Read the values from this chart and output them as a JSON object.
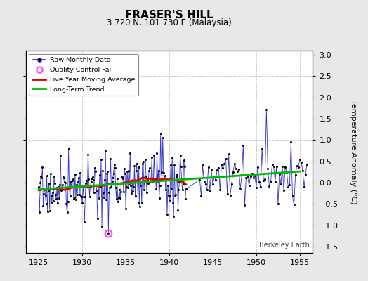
{
  "title": "FRASER'S HILL",
  "subtitle": "3.720 N, 101.730 E (Malaysia)",
  "ylabel": "Temperature Anomaly (°C)",
  "credit": "Berkeley Earth",
  "xlim": [
    1923.5,
    1956.5
  ],
  "ylim": [
    -1.65,
    3.1
  ],
  "xticks": [
    1925,
    1930,
    1935,
    1940,
    1945,
    1950,
    1955
  ],
  "yticks": [
    -1.5,
    -1.0,
    -0.5,
    0.0,
    0.5,
    1.0,
    1.5,
    2.0,
    2.5,
    3.0
  ],
  "bg_color": "#e8e8e8",
  "plot_bg_color": "#ffffff",
  "raw_line_color": "#3333cc",
  "raw_marker_color": "#000000",
  "ma_color": "#dd0000",
  "trend_color": "#00bb00",
  "qc_fail_color": "#ff44ff",
  "seed": 17
}
